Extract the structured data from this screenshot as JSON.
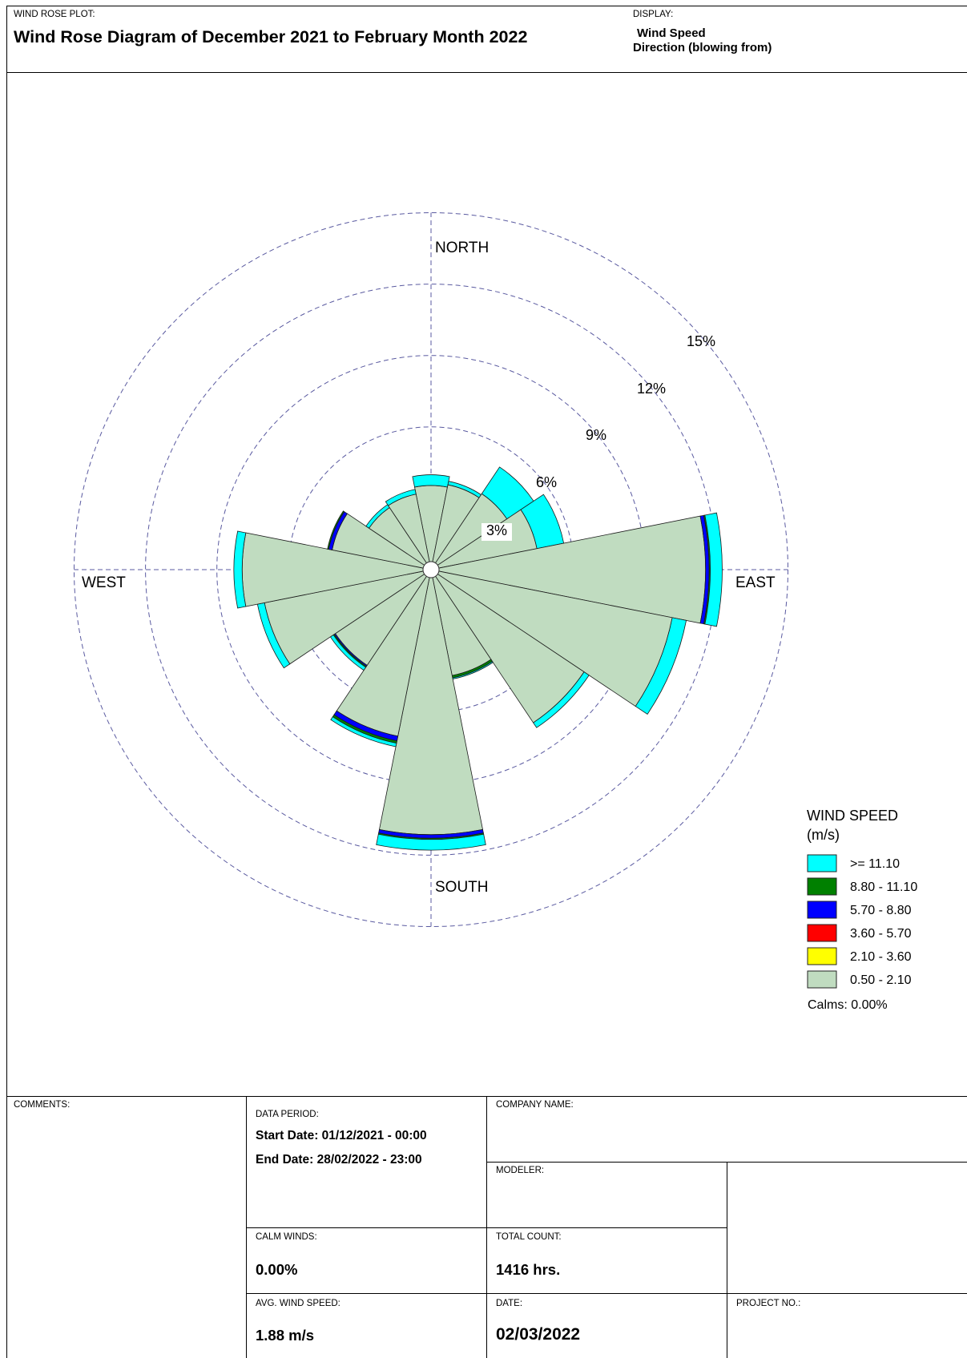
{
  "header": {
    "plot_label": "WIND ROSE PLOT:",
    "title": "Wind Rose Diagram of December 2021 to February Month 2022",
    "display_label": "DISPLAY:",
    "display_line1": "Wind Speed",
    "display_line2": "Direction (blowing from)"
  },
  "chart_data": {
    "type": "wind_rose",
    "direction_labels": {
      "north": "NORTH",
      "east": "EAST",
      "south": "SOUTH",
      "west": "WEST"
    },
    "rings": [
      3,
      6,
      9,
      12,
      15
    ],
    "ring_labels": [
      "3%",
      "6%",
      "9%",
      "12%",
      "15%"
    ],
    "legend_title": "WIND SPEED",
    "legend_unit": "(m/s)",
    "bins": [
      {
        "label": ">= 11.10",
        "color": "#00ffff"
      },
      {
        "label": "8.80 - 11.10",
        "color": "#008000"
      },
      {
        "label": "5.70 - 8.80",
        "color": "#0000ff"
      },
      {
        "label": "3.60 - 5.70",
        "color": "#ff0000"
      },
      {
        "label": "2.10 - 3.60",
        "color": "#ffff00"
      },
      {
        "label": "0.50 - 2.10",
        "color": "#c0dcc0"
      }
    ],
    "calms": "Calms: 0.00%",
    "directions": [
      "N",
      "NNE",
      "NE",
      "ENE",
      "E",
      "ESE",
      "SE",
      "SSE",
      "S",
      "SSW",
      "SW",
      "WSW",
      "W",
      "WNW",
      "NW",
      "NNW"
    ],
    "sectors": [
      {
        "dir": "N",
        "base": 3.2,
        "blue": 0.0,
        "green": 0.0,
        "cyan": 0.45
      },
      {
        "dir": "NNE",
        "base": 3.3,
        "blue": 0.0,
        "green": 0.0,
        "cyan": 0.15
      },
      {
        "dir": "NE",
        "base": 3.5,
        "blue": 0.0,
        "green": 0.0,
        "cyan": 1.35
      },
      {
        "dir": "ENE",
        "base": 4.2,
        "blue": 0.0,
        "green": 0.0,
        "cyan": 1.15
      },
      {
        "dir": "E",
        "base": 11.2,
        "blue": 0.15,
        "green": 0.05,
        "cyan": 0.5
      },
      {
        "dir": "ESE",
        "base": 10.0,
        "blue": 0.0,
        "green": 0.0,
        "cyan": 0.6
      },
      {
        "dir": "SE",
        "base": 7.4,
        "blue": 0.0,
        "green": 0.0,
        "cyan": 0.25
      },
      {
        "dir": "SSE",
        "base": 4.2,
        "blue": 0.0,
        "green": 0.1,
        "cyan": 0.05
      },
      {
        "dir": "S",
        "base": 10.8,
        "blue": 0.15,
        "green": 0.05,
        "cyan": 0.45
      },
      {
        "dir": "SSW",
        "base": 6.8,
        "blue": 0.2,
        "green": 0.1,
        "cyan": 0.15
      },
      {
        "dir": "SW",
        "base": 4.5,
        "blue": 0.05,
        "green": 0.05,
        "cyan": 0.15
      },
      {
        "dir": "WSW",
        "base": 6.8,
        "blue": 0.0,
        "green": 0.0,
        "cyan": 0.3
      },
      {
        "dir": "W",
        "base": 7.6,
        "blue": 0.0,
        "green": 0.0,
        "cyan": 0.35
      },
      {
        "dir": "WNW",
        "base": 3.9,
        "blue": 0.15,
        "green": 0.05,
        "cyan": 0.0
      },
      {
        "dir": "NW",
        "base": 2.8,
        "blue": 0.0,
        "green": 0.0,
        "cyan": 0.15
      },
      {
        "dir": "NNW",
        "base": 2.9,
        "blue": 0.0,
        "green": 0.0,
        "cyan": 0.2
      }
    ]
  },
  "footer": {
    "comments_label": "COMMENTS:",
    "data_period_label": "DATA PERIOD:",
    "start_date": "Start Date: 01/12/2021 - 00:00",
    "end_date": "End Date: 28/02/2022 - 23:00",
    "company_label": "COMPANY NAME:",
    "modeler_label": "MODELER:",
    "calm_label": "CALM WINDS:",
    "calm_value": "0.00%",
    "total_label": "TOTAL COUNT:",
    "total_value": "1416 hrs.",
    "avg_label": "AVG. WIND SPEED:",
    "avg_value": "1.88 m/s",
    "date_label": "DATE:",
    "date_value": "02/03/2022",
    "project_label": "PROJECT NO.:"
  }
}
